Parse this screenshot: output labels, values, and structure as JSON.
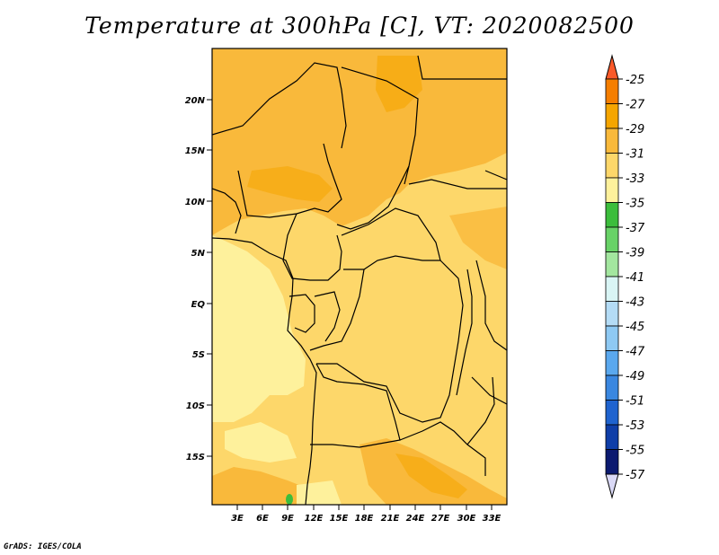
{
  "title": "Temperature at 300hPa [C], VT: 2020082500",
  "credit": "GrADS: IGES/COLA",
  "map": {
    "lat_labels": [
      "20N",
      "15N",
      "10N",
      "5N",
      "EQ",
      "5S",
      "10S",
      "15S"
    ],
    "lon_labels": [
      "3E",
      "6E",
      "9E",
      "12E",
      "15E",
      "18E",
      "21E",
      "24E",
      "27E",
      "30E",
      "33E"
    ]
  },
  "colorbar": {
    "labels": [
      "-25",
      "-27",
      "-29",
      "-31",
      "-33",
      "-35",
      "-37",
      "-39",
      "-41",
      "-43",
      "-45",
      "-47",
      "-49",
      "-51",
      "-53",
      "-55",
      "-57"
    ],
    "colors": [
      "#fa5a2a",
      "#f57e00",
      "#f5a500",
      "#f9b93b",
      "#fdd76a",
      "#fef19c",
      "#3cbd3c",
      "#68d267",
      "#a3e69f",
      "#d9f5f5",
      "#b4dcf6",
      "#8ec9f3",
      "#5aa8ee",
      "#3a87e0",
      "#1f63cf",
      "#0f3ea8",
      "#0c1a70",
      "#dad9f6"
    ]
  },
  "legend_colors": {
    "land_border": "#000000",
    "field_main": "#fdd76a",
    "field_warm": "#f9b93b",
    "field_cool": "#fef19c"
  }
}
